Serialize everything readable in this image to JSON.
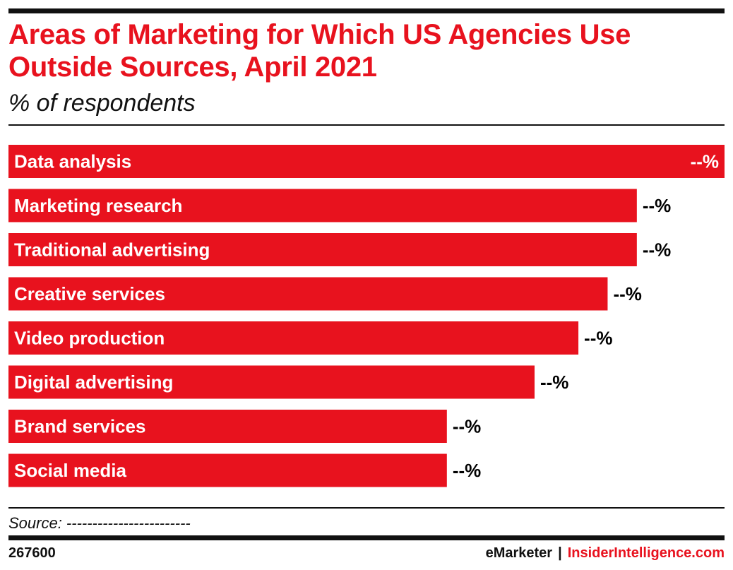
{
  "header": {
    "title": "Areas of Marketing for Which US Agencies Use Outside Sources, April 2021",
    "subtitle": "% of respondents"
  },
  "chart_data": {
    "type": "bar",
    "orientation": "horizontal",
    "title": "Areas of Marketing for Which US Agencies Use Outside Sources, April 2021",
    "subtitle": "% of respondents",
    "categories": [
      "Data analysis",
      "Marketing research",
      "Traditional advertising",
      "Creative services",
      "Video production",
      "Digital advertising",
      "Brand services",
      "Social media"
    ],
    "values": [
      49,
      43,
      43,
      41,
      39,
      36,
      30,
      30
    ],
    "value_labels": [
      "--%",
      "--%",
      "--%",
      "--%",
      "--%",
      "--%",
      "--%",
      "--%"
    ],
    "xlim": [
      0,
      49
    ],
    "bar_color": "#e8121e",
    "grid": false,
    "legend": "none"
  },
  "footer": {
    "source": "Source: ------------------------",
    "chart_id": "267600",
    "brand_emarketer": "eMarketer",
    "brand_separator": "|",
    "brand_insider": "InsiderIntelligence.com"
  },
  "colors": {
    "accent": "#e8121e",
    "rule": "#111111"
  }
}
